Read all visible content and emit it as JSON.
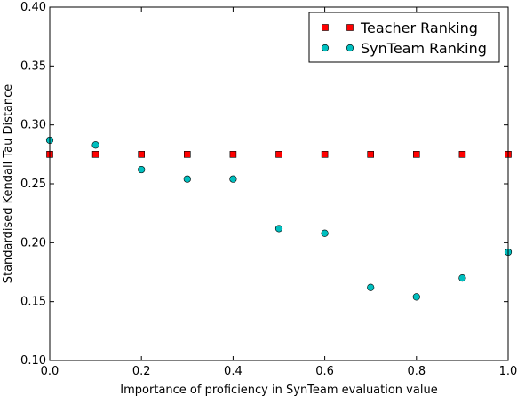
{
  "chart_data": {
    "type": "scatter",
    "xlabel": "Importance of proficiency in SynTeam evaluation value",
    "ylabel": "Standardised Kendall Tau Distance",
    "xlim": [
      0.0,
      1.0
    ],
    "ylim": [
      0.1,
      0.4
    ],
    "x_ticks": [
      "0.0",
      "0.2",
      "0.4",
      "0.6",
      "0.8",
      "1.0"
    ],
    "x_tick_values": [
      0.0,
      0.2,
      0.4,
      0.6,
      0.8,
      1.0
    ],
    "y_ticks": [
      "0.10",
      "0.15",
      "0.20",
      "0.25",
      "0.30",
      "0.35",
      "0.40"
    ],
    "y_tick_values": [
      0.1,
      0.15,
      0.2,
      0.25,
      0.3,
      0.35,
      0.4
    ],
    "grid": false,
    "legend_position": "top-right",
    "series": [
      {
        "name": "Teacher Ranking",
        "marker": "square",
        "color": "#ff0000",
        "x": [
          0.0,
          0.1,
          0.2,
          0.3,
          0.4,
          0.5,
          0.6,
          0.7,
          0.8,
          0.9,
          1.0
        ],
        "y": [
          0.275,
          0.275,
          0.275,
          0.275,
          0.275,
          0.275,
          0.275,
          0.275,
          0.275,
          0.275,
          0.275
        ]
      },
      {
        "name": "SynTeam Ranking",
        "marker": "circle",
        "color": "#00bfbf",
        "x": [
          0.0,
          0.1,
          0.2,
          0.3,
          0.4,
          0.5,
          0.6,
          0.7,
          0.8,
          0.9,
          1.0
        ],
        "y": [
          0.287,
          0.283,
          0.262,
          0.254,
          0.254,
          0.212,
          0.208,
          0.162,
          0.154,
          0.17,
          0.192
        ]
      }
    ]
  }
}
